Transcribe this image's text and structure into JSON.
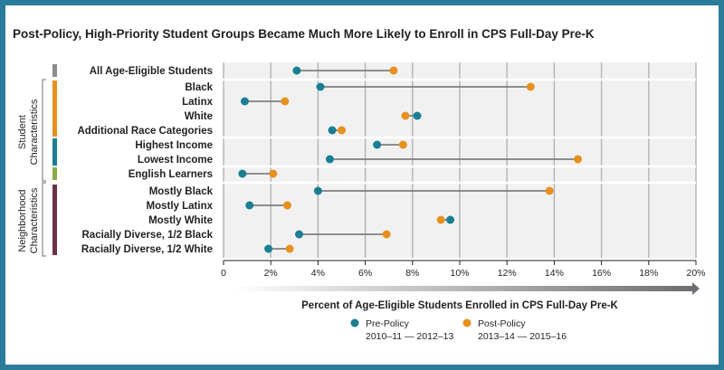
{
  "chart_data": {
    "type": "dumbbell",
    "title": "Post-Policy, High-Priority Student Groups Became Much More Likely to Enroll in CPS Full-Day Pre-K",
    "xlabel": "Percent of Age-Eligible Students Enrolled in CPS Full-Day Pre-K",
    "xlim": [
      0,
      20
    ],
    "xticks": [
      "0",
      "2%",
      "4%",
      "6%",
      "8%",
      "10%",
      "12%",
      "14%",
      "16%",
      "18%",
      "20%"
    ],
    "grid": true,
    "legend_position": "bottom-center",
    "group_labels": [
      {
        "lines": [
          "Student",
          "Characteristics"
        ]
      },
      {
        "lines": [
          "Neighborhood",
          "Characteristics"
        ]
      }
    ],
    "series": [
      {
        "name": "Pre-Policy",
        "sub": "2010–11 — 2012–13",
        "color": "#1a7f93"
      },
      {
        "name": "Post-Policy",
        "sub": "2013–14 — 2015–16",
        "color": "#e8901e"
      }
    ],
    "categories": [
      {
        "label": "All Age-Eligible Students",
        "pre": 3.1,
        "post": 7.2,
        "band": "#8c8c8c"
      },
      {
        "label": "Black",
        "pre": 4.1,
        "post": 13.0,
        "band": "#e8901e"
      },
      {
        "label": "Latinx",
        "pre": 0.9,
        "post": 2.6,
        "band": "#e8901e"
      },
      {
        "label": "White",
        "pre": 8.2,
        "post": 7.7,
        "band": "#e8901e"
      },
      {
        "label": "Additional Race Categories",
        "pre": 4.6,
        "post": 5.0,
        "band": "#e8901e"
      },
      {
        "label": "Highest Income",
        "pre": 6.5,
        "post": 7.6,
        "band": "#1a7f93"
      },
      {
        "label": "Lowest Income",
        "pre": 4.5,
        "post": 15.0,
        "band": "#1a7f93"
      },
      {
        "label": "English Learners",
        "pre": 0.8,
        "post": 2.1,
        "band": "#8aab45"
      },
      {
        "label": "Mostly Black",
        "pre": 4.0,
        "post": 13.8,
        "band": "#6b3349"
      },
      {
        "label": "Mostly Latinx",
        "pre": 1.1,
        "post": 2.7,
        "band": "#6b3349"
      },
      {
        "label": "Mostly White",
        "pre": 9.6,
        "post": 9.2,
        "band": "#6b3349"
      },
      {
        "label": "Racially Diverse, 1/2 Black",
        "pre": 3.2,
        "post": 6.9,
        "band": "#6b3349"
      },
      {
        "label": "Racially Diverse, 1/2 White",
        "pre": 1.9,
        "post": 2.8,
        "band": "#6b3349"
      }
    ]
  }
}
